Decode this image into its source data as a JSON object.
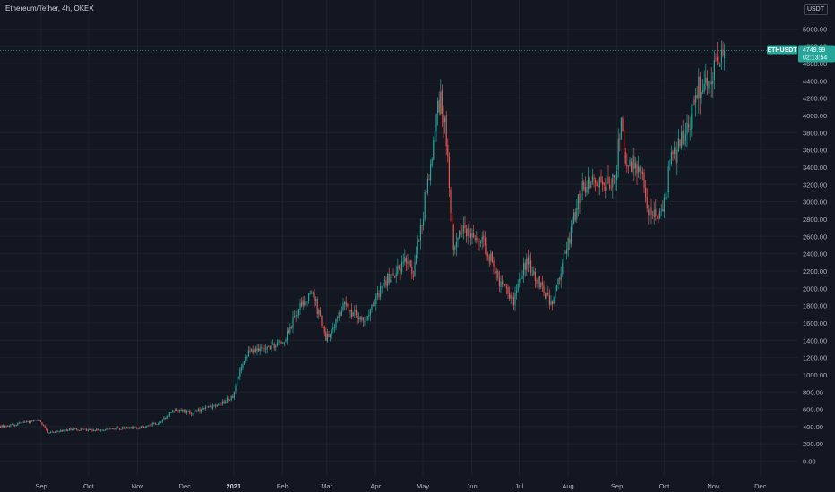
{
  "header": {
    "title": "Ethereum/Tether, 4h, OKEX",
    "currency": "USDT"
  },
  "colors": {
    "background": "#131722",
    "grid": "#1e222d",
    "up": "#26a69a",
    "down": "#ef5350",
    "axis_text": "#b2b5be"
  },
  "chart_data": {
    "type": "candlestick",
    "symbol": "ETHUSDT",
    "timeframe": "4h",
    "exchange": "OKEX",
    "last_price": "4749.99",
    "countdown": "02:13:54",
    "y_axis": {
      "ylim": [
        -170,
        5200
      ],
      "ticks": [
        "0.00",
        "200.00",
        "400.00",
        "600.00",
        "800.00",
        "1000.00",
        "1200.00",
        "1400.00",
        "1600.00",
        "1800.00",
        "2000.00",
        "2200.00",
        "2400.00",
        "2600.00",
        "2800.00",
        "3000.00",
        "3200.00",
        "3400.00",
        "3600.00",
        "3800.00",
        "4000.00",
        "4200.00",
        "4400.00",
        "4600.00",
        "4800.00",
        "5000.00"
      ]
    },
    "x_axis": {
      "labels": [
        {
          "text": "Sep",
          "date": "2020-09-01"
        },
        {
          "text": "Oct",
          "date": "2020-10-01"
        },
        {
          "text": "Nov",
          "date": "2020-11-01"
        },
        {
          "text": "Dec",
          "date": "2020-12-01"
        },
        {
          "text": "2021",
          "date": "2021-01-01",
          "bold": true
        },
        {
          "text": "Feb",
          "date": "2021-02-01"
        },
        {
          "text": "Mar",
          "date": "2021-03-01"
        },
        {
          "text": "Apr",
          "date": "2021-04-01"
        },
        {
          "text": "May",
          "date": "2021-05-01"
        },
        {
          "text": "Jun",
          "date": "2021-06-01"
        },
        {
          "text": "Jul",
          "date": "2021-07-01"
        },
        {
          "text": "Aug",
          "date": "2021-08-01"
        },
        {
          "text": "Sep",
          "date": "2021-09-01"
        },
        {
          "text": "Oct",
          "date": "2021-10-01"
        },
        {
          "text": "Nov",
          "date": "2021-11-01"
        },
        {
          "text": "Dec",
          "date": "2021-12-01"
        }
      ]
    },
    "price_path": [
      {
        "date": "2020-07-30",
        "close": 380
      },
      {
        "date": "2020-08-15",
        "close": 430
      },
      {
        "date": "2020-08-31",
        "close": 470
      },
      {
        "date": "2020-09-05",
        "close": 330
      },
      {
        "date": "2020-09-20",
        "close": 370
      },
      {
        "date": "2020-10-01",
        "close": 355
      },
      {
        "date": "2020-10-20",
        "close": 380
      },
      {
        "date": "2020-11-01",
        "close": 390
      },
      {
        "date": "2020-11-15",
        "close": 450
      },
      {
        "date": "2020-11-24",
        "close": 600
      },
      {
        "date": "2020-12-05",
        "close": 560
      },
      {
        "date": "2020-12-20",
        "close": 640
      },
      {
        "date": "2020-12-31",
        "close": 740
      },
      {
        "date": "2021-01-04",
        "close": 1000
      },
      {
        "date": "2021-01-10",
        "close": 1250
      },
      {
        "date": "2021-01-20",
        "close": 1300
      },
      {
        "date": "2021-02-01",
        "close": 1380
      },
      {
        "date": "2021-02-12",
        "close": 1800
      },
      {
        "date": "2021-02-20",
        "close": 1950
      },
      {
        "date": "2021-02-28",
        "close": 1400
      },
      {
        "date": "2021-03-12",
        "close": 1800
      },
      {
        "date": "2021-03-25",
        "close": 1600
      },
      {
        "date": "2021-04-01",
        "close": 1900
      },
      {
        "date": "2021-04-10",
        "close": 2150
      },
      {
        "date": "2021-04-20",
        "close": 2300
      },
      {
        "date": "2021-04-25",
        "close": 2200
      },
      {
        "date": "2021-05-01",
        "close": 2900
      },
      {
        "date": "2021-05-06",
        "close": 3500
      },
      {
        "date": "2021-05-12",
        "close": 4300
      },
      {
        "date": "2021-05-16",
        "close": 3600
      },
      {
        "date": "2021-05-20",
        "close": 2400
      },
      {
        "date": "2021-05-25",
        "close": 2700
      },
      {
        "date": "2021-06-01",
        "close": 2650
      },
      {
        "date": "2021-06-10",
        "close": 2450
      },
      {
        "date": "2021-06-20",
        "close": 2000
      },
      {
        "date": "2021-06-27",
        "close": 1850
      },
      {
        "date": "2021-07-05",
        "close": 2300
      },
      {
        "date": "2021-07-15",
        "close": 2000
      },
      {
        "date": "2021-07-21",
        "close": 1800
      },
      {
        "date": "2021-07-30",
        "close": 2400
      },
      {
        "date": "2021-08-10",
        "close": 3200
      },
      {
        "date": "2021-08-20",
        "close": 3200
      },
      {
        "date": "2021-08-31",
        "close": 3300
      },
      {
        "date": "2021-09-03",
        "close": 3950
      },
      {
        "date": "2021-09-07",
        "close": 3450
      },
      {
        "date": "2021-09-15",
        "close": 3400
      },
      {
        "date": "2021-09-21",
        "close": 2900
      },
      {
        "date": "2021-09-28",
        "close": 2800
      },
      {
        "date": "2021-10-05",
        "close": 3450
      },
      {
        "date": "2021-10-15",
        "close": 3800
      },
      {
        "date": "2021-10-21",
        "close": 4300
      },
      {
        "date": "2021-10-28",
        "close": 4300
      },
      {
        "date": "2021-11-03",
        "close": 4550
      },
      {
        "date": "2021-11-08",
        "close": 4750
      }
    ]
  }
}
